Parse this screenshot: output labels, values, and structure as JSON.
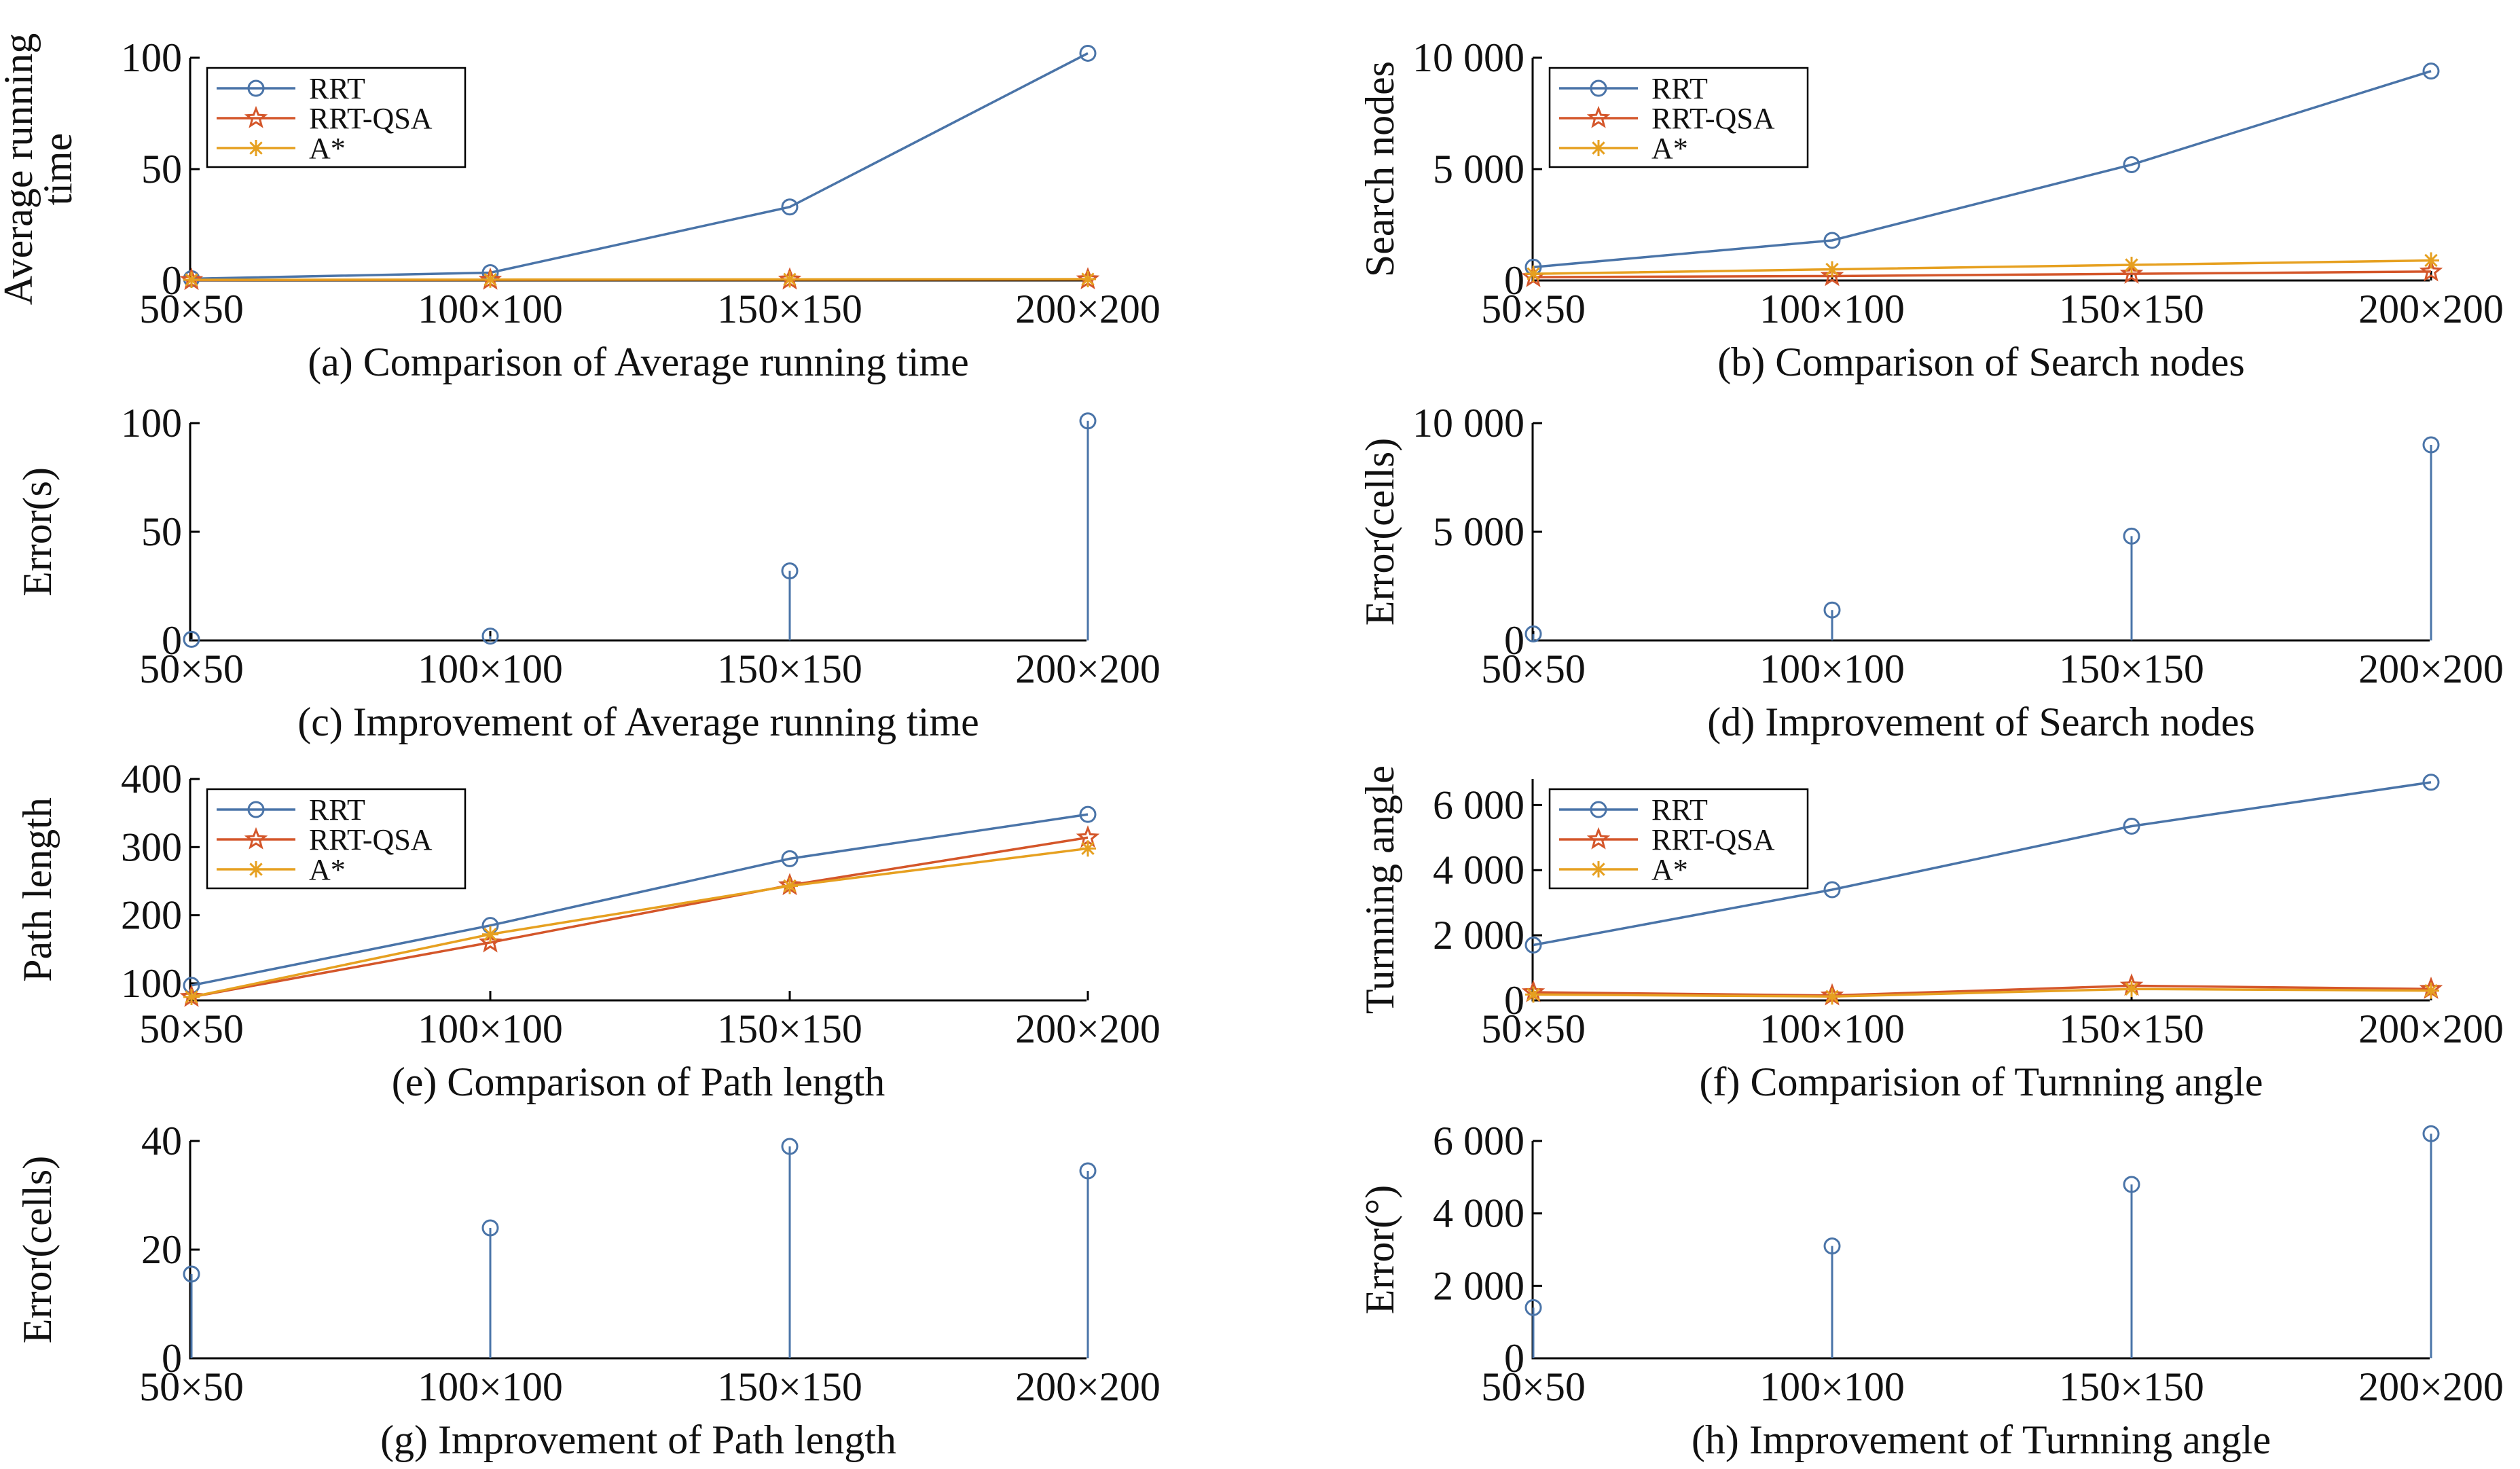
{
  "colors": {
    "RRT": "#4a74a8",
    "RRT-QSA": "#d4562a",
    "A*": "#e6a020",
    "axis": "#000000"
  },
  "chart_data": [
    {
      "id": "a",
      "type": "line",
      "caption": "(a) Comparison of Average running time",
      "ylabel": [
        "Average running",
        "time"
      ],
      "categories": [
        "50×50",
        "100×100",
        "150×150",
        "200×200"
      ],
      "yticks": [
        0,
        50,
        100
      ],
      "yticklabels": [
        "0",
        "50",
        "100"
      ],
      "ylim": [
        0,
        100
      ],
      "legend": "top-left",
      "grid": false,
      "series": [
        {
          "name": "RRT",
          "marker": "circle",
          "values": [
            0.8,
            3.5,
            33,
            102
          ]
        },
        {
          "name": "RRT-QSA",
          "marker": "star",
          "values": [
            0.2,
            0.3,
            0.4,
            0.5
          ]
        },
        {
          "name": "A*",
          "marker": "asterisk",
          "values": [
            0.3,
            0.4,
            0.5,
            0.6
          ]
        }
      ]
    },
    {
      "id": "b",
      "type": "line",
      "caption": "(b) Comparison of Search nodes",
      "ylabel": [
        "Search nodes"
      ],
      "categories": [
        "50×50",
        "100×100",
        "150×150",
        "200×200"
      ],
      "yticks": [
        0,
        5000,
        10000
      ],
      "yticklabels": [
        "0",
        "5 000",
        "10 000"
      ],
      "ylim": [
        0,
        10000
      ],
      "legend": "top-left",
      "grid": false,
      "series": [
        {
          "name": "RRT",
          "marker": "circle",
          "values": [
            600,
            1800,
            5200,
            9400
          ]
        },
        {
          "name": "RRT-QSA",
          "marker": "star",
          "values": [
            150,
            200,
            300,
            400
          ]
        },
        {
          "name": "A*",
          "marker": "asterisk",
          "values": [
            300,
            500,
            700,
            900
          ]
        }
      ]
    },
    {
      "id": "c",
      "type": "stem",
      "caption": "(c) Improvement of Average running time",
      "ylabel": [
        "Error(s)"
      ],
      "categories": [
        "50×50",
        "100×100",
        "150×150",
        "200×200"
      ],
      "yticks": [
        0,
        50,
        100
      ],
      "yticklabels": [
        "0",
        "50",
        "100"
      ],
      "ylim": [
        0,
        100
      ],
      "grid": false,
      "series": [
        {
          "name": "RRT",
          "marker": "circle",
          "values": [
            0.5,
            2,
            32,
            101
          ]
        }
      ]
    },
    {
      "id": "d",
      "type": "stem",
      "caption": "(d) Improvement of Search nodes",
      "ylabel": [
        "Error(cells)"
      ],
      "categories": [
        "50×50",
        "100×100",
        "150×150",
        "200×200"
      ],
      "yticks": [
        0,
        5000,
        10000
      ],
      "yticklabels": [
        "0",
        "5 000",
        "10 000"
      ],
      "ylim": [
        0,
        10000
      ],
      "grid": false,
      "series": [
        {
          "name": "RRT",
          "marker": "circle",
          "values": [
            300,
            1400,
            4800,
            9000
          ]
        }
      ]
    },
    {
      "id": "e",
      "type": "line",
      "caption": "(e) Comparison of Path length",
      "ylabel": [
        "Path length"
      ],
      "categories": [
        "50×50",
        "100×100",
        "150×150",
        "200×200"
      ],
      "yticks": [
        100,
        200,
        300,
        400
      ],
      "yticklabels": [
        "100",
        "200",
        "300",
        "400"
      ],
      "ylim": [
        75,
        400
      ],
      "legend": "top-left",
      "grid": false,
      "series": [
        {
          "name": "RRT",
          "marker": "circle",
          "values": [
            97,
            185,
            283,
            348
          ]
        },
        {
          "name": "RRT-QSA",
          "marker": "star",
          "values": [
            80,
            160,
            244,
            314
          ]
        },
        {
          "name": "A*",
          "marker": "asterisk",
          "values": [
            80,
            172,
            243,
            298
          ]
        }
      ]
    },
    {
      "id": "f",
      "type": "line",
      "caption": "(f) Comparision of Turnning angle",
      "ylabel": [
        "Turnning angle"
      ],
      "categories": [
        "50×50",
        "100×100",
        "150×150",
        "200×200"
      ],
      "yticks": [
        0,
        2000,
        4000,
        6000
      ],
      "yticklabels": [
        "0",
        "2 000",
        "4 000",
        "6 000"
      ],
      "ylim": [
        0,
        6800
      ],
      "legend": "top-left",
      "grid": false,
      "series": [
        {
          "name": "RRT",
          "marker": "circle",
          "values": [
            1700,
            3400,
            5350,
            6700
          ]
        },
        {
          "name": "RRT-QSA",
          "marker": "star",
          "values": [
            250,
            150,
            450,
            350
          ]
        },
        {
          "name": "A*",
          "marker": "asterisk",
          "values": [
            180,
            120,
            350,
            300
          ]
        }
      ]
    },
    {
      "id": "g",
      "type": "stem",
      "caption": "(g) Improvement of Path length",
      "ylabel": [
        "Error(cells)"
      ],
      "categories": [
        "50×50",
        "100×100",
        "150×150",
        "200×200"
      ],
      "yticks": [
        0,
        20,
        40
      ],
      "yticklabels": [
        "0",
        "20",
        "40"
      ],
      "ylim": [
        0,
        40
      ],
      "grid": false,
      "series": [
        {
          "name": "RRT",
          "marker": "circle",
          "values": [
            15.5,
            24,
            39,
            34.5
          ]
        }
      ]
    },
    {
      "id": "h",
      "type": "stem",
      "caption": "(h) Improvement of Turnning angle",
      "ylabel": [
        "Error(°)"
      ],
      "categories": [
        "50×50",
        "100×100",
        "150×150",
        "200×200"
      ],
      "yticks": [
        0,
        2000,
        4000,
        6000
      ],
      "yticklabels": [
        "0",
        "2 000",
        "4 000",
        "6 000"
      ],
      "ylim": [
        0,
        6000
      ],
      "grid": false,
      "series": [
        {
          "name": "RRT",
          "marker": "circle",
          "values": [
            1400,
            3100,
            4800,
            6200
          ]
        }
      ]
    }
  ]
}
